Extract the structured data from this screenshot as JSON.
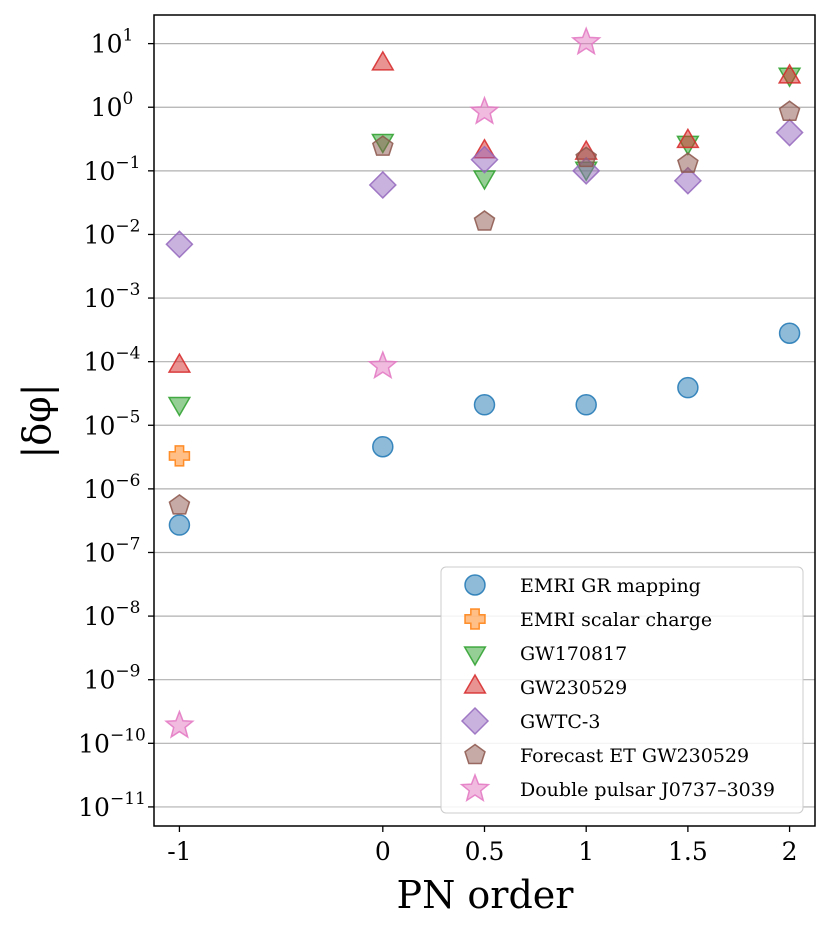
{
  "chart_data": {
    "type": "scatter",
    "title": "",
    "xlabel": "PN order",
    "ylabel": "|δφ|",
    "yscale": "log",
    "grid": "horizontal",
    "legend_position": "bottom-right",
    "xlim": [
      -1.125,
      2.125
    ],
    "ylim_log10": [
      -11.3,
      1.45
    ],
    "x_ticks": [
      -1,
      0,
      0.5,
      1,
      1.5,
      2
    ],
    "x_tick_labels": [
      "-1",
      "0",
      "0.5",
      "1",
      "1.5",
      "2"
    ],
    "y_ticks_exponent": [
      1,
      0,
      -1,
      -2,
      -3,
      -4,
      -5,
      -6,
      -7,
      -8,
      -9,
      -10,
      -11
    ],
    "y_tick_base": "10",
    "series": [
      {
        "name": "EMRI GR mapping",
        "marker": "circle",
        "color": "#1f77b4",
        "points": [
          [
            -1,
            2.7e-07
          ],
          [
            0,
            4.6e-06
          ],
          [
            0.5,
            2.1e-05
          ],
          [
            1,
            2.1e-05
          ],
          [
            1.5,
            3.9e-05
          ],
          [
            2,
            0.00028
          ]
        ]
      },
      {
        "name": "EMRI scalar charge",
        "marker": "plus",
        "color": "#ff7f0e",
        "points": [
          [
            -1,
            3.3e-06
          ]
        ]
      },
      {
        "name": "GW170817",
        "marker": "triangle-down",
        "color": "#2ca02c",
        "points": [
          [
            -1,
            2.2e-05
          ],
          [
            0,
            0.3
          ],
          [
            0.5,
            0.08
          ],
          [
            1,
            0.11
          ],
          [
            1.5,
            0.28
          ],
          [
            2,
            3.3
          ]
        ]
      },
      {
        "name": "GW230529",
        "marker": "triangle-up",
        "color": "#d62728",
        "points": [
          [
            -1,
            8.5e-05
          ],
          [
            0,
            4.8
          ],
          [
            0.5,
            0.2
          ],
          [
            1,
            0.19
          ],
          [
            1.5,
            0.29
          ],
          [
            2,
            3.0
          ]
        ]
      },
      {
        "name": "GWTC-3",
        "marker": "diamond",
        "color": "#9467bd",
        "points": [
          [
            -1,
            0.007
          ],
          [
            0,
            0.06
          ],
          [
            0.5,
            0.15
          ],
          [
            1,
            0.1
          ],
          [
            1.5,
            0.07
          ],
          [
            2,
            0.4
          ]
        ]
      },
      {
        "name": "Forecast ET GW230529",
        "marker": "pentagon",
        "color": "#8c564b",
        "points": [
          [
            -1,
            5.5e-07
          ],
          [
            0,
            0.24
          ],
          [
            0.5,
            0.016
          ],
          [
            1,
            0.16
          ],
          [
            1.5,
            0.13
          ],
          [
            2,
            0.85
          ]
        ]
      },
      {
        "name": "Double pulsar J0737–3039",
        "marker": "star",
        "color": "#e377c2",
        "points": [
          [
            -1,
            1.9e-10
          ],
          [
            0,
            8.5e-05
          ],
          [
            0.5,
            0.85
          ],
          [
            1,
            10.5
          ]
        ]
      }
    ]
  }
}
